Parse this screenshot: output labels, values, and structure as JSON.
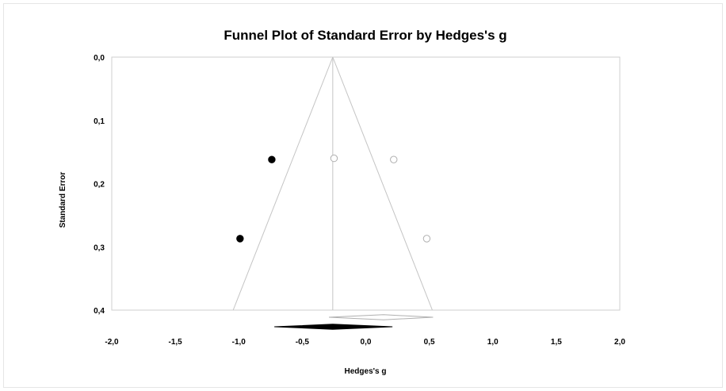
{
  "chart_data": {
    "type": "scatter",
    "title": "Funnel Plot of Standard Error by Hedges's g",
    "xlabel": "Hedges's g",
    "ylabel": "Standard Error",
    "xlim": [
      -2.0,
      2.0
    ],
    "ylim": [
      0.0,
      0.4
    ],
    "y_inverted": true,
    "x_ticks": [
      "-2,0",
      "-1,5",
      "-1,0",
      "-0,5",
      "0,0",
      "0,5",
      "1,0",
      "1,5",
      "2,0"
    ],
    "x_tick_values": [
      -2.0,
      -1.5,
      -1.0,
      -0.5,
      0.0,
      0.5,
      1.0,
      1.5,
      2.0
    ],
    "y_ticks": [
      "0,0",
      "0,1",
      "0,2",
      "0,3",
      "0,4"
    ],
    "y_tick_values": [
      0.0,
      0.1,
      0.2,
      0.3,
      0.4
    ],
    "grid": false,
    "summary_effect": -0.26,
    "series": [
      {
        "style": "filled",
        "color": "#000000",
        "points": [
          {
            "x": -0.74,
            "y": 0.162
          },
          {
            "x": -0.99,
            "y": 0.287
          }
        ]
      },
      {
        "style": "open",
        "color": "#b0b0b0",
        "points": [
          {
            "x": -0.25,
            "y": 0.16
          },
          {
            "x": 0.22,
            "y": 0.162
          },
          {
            "x": 0.48,
            "y": 0.287
          }
        ]
      }
    ],
    "diamonds": [
      {
        "style": "open",
        "center": 0.14,
        "lower": -0.29,
        "upper": 0.53
      },
      {
        "style": "filled",
        "center": -0.26,
        "lower": -0.72,
        "upper": 0.21
      }
    ]
  }
}
